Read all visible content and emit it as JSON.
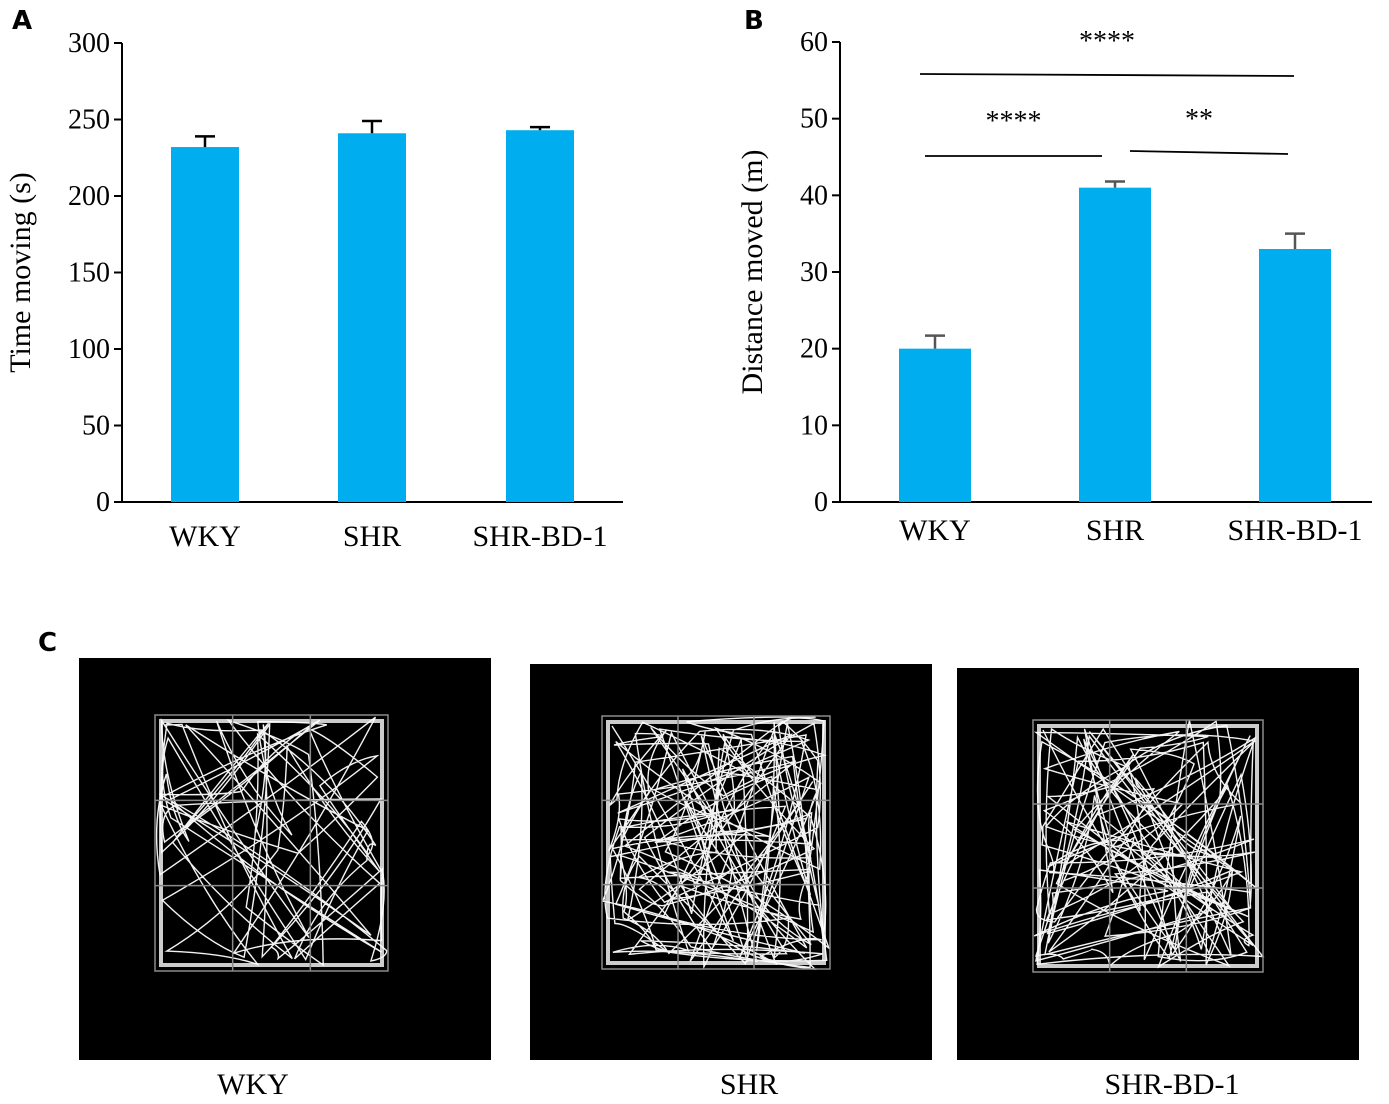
{
  "panels": {
    "a_letter": "A",
    "b_letter": "B",
    "c_letter": "C"
  },
  "chart_data": [
    {
      "type": "bar",
      "panel": "A",
      "categories": [
        "WKY",
        "SHR",
        "SHR-BD-1"
      ],
      "values": [
        232,
        241,
        243
      ],
      "errors": [
        7,
        8,
        2
      ],
      "title": "",
      "xlabel": "",
      "ylabel": "Time moving (s)",
      "ylim": [
        0,
        300
      ],
      "yticks": [
        0,
        50,
        100,
        150,
        200,
        250,
        300
      ],
      "bar_color": "#00AEEF",
      "grid": false,
      "significance": []
    },
    {
      "type": "bar",
      "panel": "B",
      "categories": [
        "WKY",
        "SHR",
        "SHR-BD-1"
      ],
      "values": [
        20,
        41,
        33
      ],
      "errors": [
        1.7,
        0.8,
        2.0
      ],
      "title": "",
      "xlabel": "",
      "ylabel": "Distance moved (m)",
      "ylim": [
        0,
        60
      ],
      "yticks": [
        0,
        10,
        20,
        30,
        40,
        50,
        60
      ],
      "bar_color": "#00AEEF",
      "grid": false,
      "significance": [
        {
          "from": "WKY",
          "to": "SHR-BD-1",
          "label": "****"
        },
        {
          "from": "WKY",
          "to": "SHR",
          "label": "****"
        },
        {
          "from": "SHR",
          "to": "SHR-BD-1",
          "label": "**"
        }
      ]
    }
  ],
  "tracks": [
    {
      "label": "WKY"
    },
    {
      "label": "SHR"
    },
    {
      "label": "SHR-BD-1"
    }
  ],
  "colors": {
    "bar": "#00AEEF",
    "arena_bg": "#000000",
    "grid": "#8a8a8a",
    "path": "#ffffff"
  }
}
